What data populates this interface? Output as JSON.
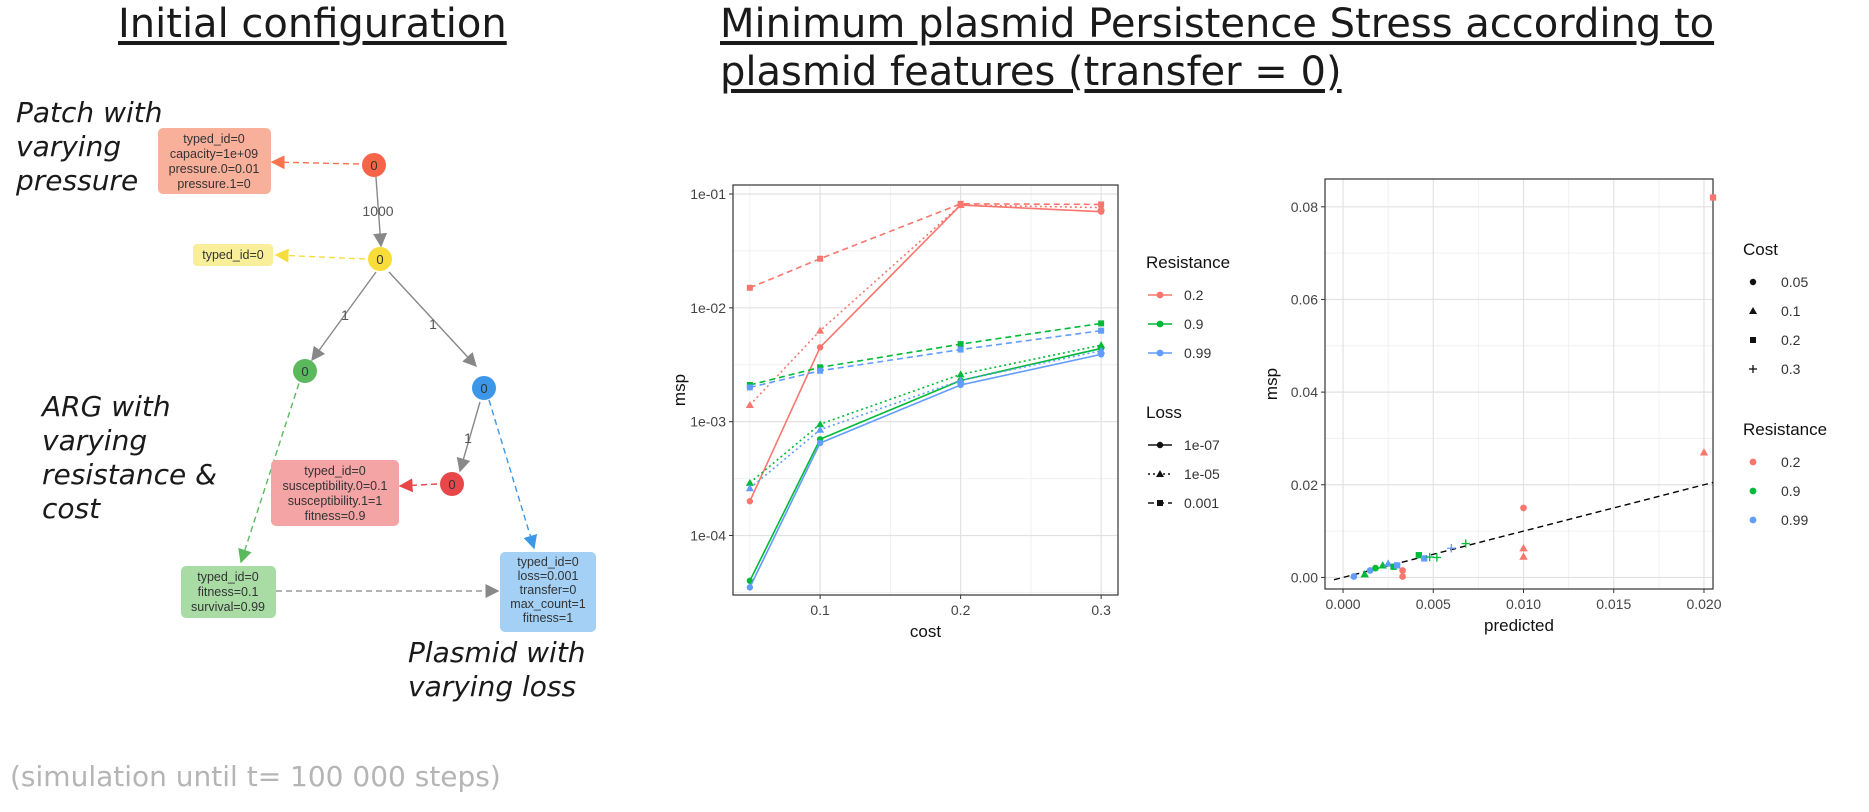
{
  "left_title": "Initial configuration",
  "right_title_line1": "Minimum plasmid Persistence Stress according to ",
  "right_title_line2": "plasmid features (transfer = 0) ",
  "footnote": "(simulation until t= 100 000 steps)",
  "notes": {
    "patch": [
      "Patch with",
      "varying",
      "pressure"
    ],
    "arg": [
      "ARG with",
      "varying",
      "resistance &",
      "cost"
    ],
    "plasmid": [
      "Plasmid with",
      "varying loss"
    ]
  },
  "diagram": {
    "colors": {
      "patch": "#f8644a",
      "yellow": "#f7dc3a",
      "green": "#5bb85d",
      "blue": "#3d97e8",
      "red": "#e8474a"
    },
    "nodes": [
      {
        "id": "patch",
        "label": "0"
      },
      {
        "id": "yellow",
        "label": "0"
      },
      {
        "id": "green",
        "label": "0"
      },
      {
        "id": "blue",
        "label": "0"
      },
      {
        "id": "red",
        "label": "0"
      }
    ],
    "edge_labels": {
      "patch_to_yellow": "1000",
      "yellow_to_green": "1",
      "yellow_to_blue": "1",
      "blue_to_red": "1"
    },
    "boxes": {
      "patch": [
        "typed_id=0",
        "capacity=1e+09",
        "pressure.0=0.01",
        "pressure.1=0"
      ],
      "yellow": [
        "typed_id=0"
      ],
      "red": [
        "typed_id=0",
        "susceptibility.0=0.1",
        "susceptibility.1=1",
        "fitness=0.9"
      ],
      "green": [
        "typed_id=0",
        "fitness=0.1",
        "survival=0.99"
      ],
      "blue": [
        "typed_id=0",
        "loss=0.001",
        "transfer=0",
        "max_count=1",
        "fitness=1"
      ]
    }
  },
  "chart_data": [
    {
      "type": "line",
      "xlabel": "cost",
      "ylabel": "msp",
      "y_scale": "log10",
      "xlim": [
        0.05,
        0.3
      ],
      "ylim": [
        3e-05,
        0.12
      ],
      "x_ticks": [
        0.1,
        0.2,
        0.3
      ],
      "x_tick_labels": [
        "0.1",
        "0.2",
        "0.3"
      ],
      "y_ticks": [
        0.0001,
        0.001,
        0.01,
        0.1
      ],
      "y_tick_labels": [
        "1e-04",
        "1e-03",
        "1e-02",
        "1e-01"
      ],
      "grid": true,
      "x": [
        0.05,
        0.1,
        0.2,
        0.3
      ],
      "legend_color_title": "Resistance",
      "legend_line_title": "Loss",
      "legend_colors": [
        {
          "label": "0.2",
          "color": "#f8766d"
        },
        {
          "label": "0.9",
          "color": "#00ba38"
        },
        {
          "label": "0.99",
          "color": "#619cff"
        }
      ],
      "legend_lines": [
        {
          "label": "1e-07",
          "dash": "solid",
          "shape": "circle"
        },
        {
          "label": "1e-05",
          "dash": "dotted",
          "shape": "triangle"
        },
        {
          "label": "0.001",
          "dash": "dashed",
          "shape": "square"
        }
      ],
      "series": [
        {
          "resistance": "0.2",
          "loss": "1e-07",
          "color": "#f8766d",
          "dash": "solid",
          "shape": "circle",
          "values": [
            0.0002,
            0.0045,
            0.08,
            0.07
          ]
        },
        {
          "resistance": "0.2",
          "loss": "1e-05",
          "color": "#f8766d",
          "dash": "dotted",
          "shape": "triangle",
          "values": [
            0.0014,
            0.0063,
            0.08,
            0.076
          ]
        },
        {
          "resistance": "0.2",
          "loss": "0.001",
          "color": "#f8766d",
          "dash": "dashed",
          "shape": "square",
          "values": [
            0.015,
            0.027,
            0.082,
            0.081
          ]
        },
        {
          "resistance": "0.9",
          "loss": "1e-07",
          "color": "#00ba38",
          "dash": "solid",
          "shape": "circle",
          "values": [
            4e-05,
            0.0007,
            0.0023,
            0.0044
          ]
        },
        {
          "resistance": "0.9",
          "loss": "1e-05",
          "color": "#00ba38",
          "dash": "dotted",
          "shape": "triangle",
          "values": [
            0.00029,
            0.00095,
            0.0026,
            0.0047
          ]
        },
        {
          "resistance": "0.9",
          "loss": "0.001",
          "color": "#00ba38",
          "dash": "dashed",
          "shape": "square",
          "values": [
            0.0021,
            0.003,
            0.0048,
            0.0073
          ]
        },
        {
          "resistance": "0.99",
          "loss": "1e-07",
          "color": "#619cff",
          "dash": "solid",
          "shape": "circle",
          "values": [
            3.5e-05,
            0.00065,
            0.0021,
            0.0039
          ]
        },
        {
          "resistance": "0.99",
          "loss": "1e-05",
          "color": "#619cff",
          "dash": "dotted",
          "shape": "triangle",
          "values": [
            0.00026,
            0.00085,
            0.0023,
            0.0042
          ]
        },
        {
          "resistance": "0.99",
          "loss": "0.001",
          "color": "#619cff",
          "dash": "dashed",
          "shape": "square",
          "values": [
            0.002,
            0.0028,
            0.0043,
            0.0063
          ]
        }
      ]
    },
    {
      "type": "scatter",
      "xlabel": "predicted",
      "ylabel": "msp",
      "xlim": [
        -0.001,
        0.0205
      ],
      "ylim": [
        -0.0025,
        0.086
      ],
      "x_ticks": [
        0,
        0.005,
        0.01,
        0.015,
        0.02
      ],
      "x_tick_labels": [
        "0.000",
        "0.005",
        "0.010",
        "0.015",
        "0.020"
      ],
      "y_ticks": [
        0,
        0.02,
        0.04,
        0.06,
        0.08
      ],
      "y_tick_labels": [
        "0.00",
        "0.02",
        "0.04",
        "0.06",
        "0.08"
      ],
      "grid": true,
      "reference_line": {
        "style": "dashed",
        "color": "#000000",
        "slope": 1,
        "intercept": 0
      },
      "legend_shape_title": "Cost",
      "legend_shapes": [
        {
          "label": "0.05",
          "shape": "circle"
        },
        {
          "label": "0.1",
          "shape": "triangle"
        },
        {
          "label": "0.2",
          "shape": "square"
        },
        {
          "label": "0.3",
          "shape": "plus"
        }
      ],
      "legend_color_title": "Resistance",
      "legend_colors": [
        {
          "label": "0.2",
          "color": "#f8766d"
        },
        {
          "label": "0.9",
          "color": "#00ba38"
        },
        {
          "label": "0.99",
          "color": "#619cff"
        }
      ],
      "points": [
        {
          "x": 0.0205,
          "y": 0.082,
          "color": "#f8766d",
          "shape": "square"
        },
        {
          "x": 0.02,
          "y": 0.027,
          "color": "#f8766d",
          "shape": "triangle"
        },
        {
          "x": 0.01,
          "y": 0.015,
          "color": "#f8766d",
          "shape": "circle"
        },
        {
          "x": 0.01,
          "y": 0.0063,
          "color": "#f8766d",
          "shape": "triangle"
        },
        {
          "x": 0.01,
          "y": 0.0045,
          "color": "#f8766d",
          "shape": "triangle"
        },
        {
          "x": 0.0033,
          "y": 0.0015,
          "color": "#f8766d",
          "shape": "circle"
        },
        {
          "x": 0.0033,
          "y": 0.0002,
          "color": "#f8766d",
          "shape": "circle"
        },
        {
          "x": 0.0006,
          "y": 0.0002,
          "color": "#619cff",
          "shape": "circle"
        },
        {
          "x": 0.0012,
          "y": 0.0007,
          "color": "#00ba38",
          "shape": "triangle"
        },
        {
          "x": 0.0015,
          "y": 0.0015,
          "color": "#619cff",
          "shape": "circle"
        },
        {
          "x": 0.0018,
          "y": 0.002,
          "color": "#00ba38",
          "shape": "circle"
        },
        {
          "x": 0.0022,
          "y": 0.0026,
          "color": "#00ba38",
          "shape": "triangle"
        },
        {
          "x": 0.0025,
          "y": 0.003,
          "color": "#619cff",
          "shape": "triangle"
        },
        {
          "x": 0.0028,
          "y": 0.0023,
          "color": "#00ba38",
          "shape": "square"
        },
        {
          "x": 0.003,
          "y": 0.0026,
          "color": "#619cff",
          "shape": "square"
        },
        {
          "x": 0.0042,
          "y": 0.0048,
          "color": "#00ba38",
          "shape": "square"
        },
        {
          "x": 0.0045,
          "y": 0.0041,
          "color": "#619cff",
          "shape": "square"
        },
        {
          "x": 0.0048,
          "y": 0.0044,
          "color": "#00ba38",
          "shape": "plus"
        },
        {
          "x": 0.0052,
          "y": 0.0043,
          "color": "#00ba38",
          "shape": "plus"
        },
        {
          "x": 0.006,
          "y": 0.0063,
          "color": "#619cff",
          "shape": "plus"
        },
        {
          "x": 0.0068,
          "y": 0.0073,
          "color": "#00ba38",
          "shape": "plus"
        }
      ]
    }
  ]
}
